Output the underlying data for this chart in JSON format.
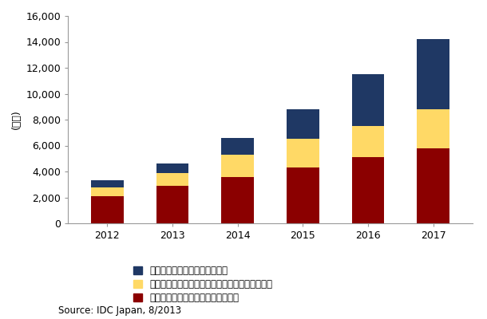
{
  "years": [
    "2012",
    "2013",
    "2014",
    "2015",
    "2016",
    "2017"
  ],
  "on_premise": [
    2100,
    2900,
    3600,
    4300,
    5100,
    5800
  ],
  "dedicated": [
    700,
    950,
    1700,
    2200,
    2400,
    3000
  ],
  "community": [
    500,
    750,
    1300,
    2300,
    4000,
    5400
  ],
  "colors": {
    "on_premise": "#8B0000",
    "dedicated": "#FFD966",
    "community": "#1F3864"
  },
  "ylabel": "(億円)",
  "ylim": [
    0,
    16000
  ],
  "yticks": [
    0,
    2000,
    4000,
    6000,
    8000,
    10000,
    12000,
    14000,
    16000
  ],
  "legend_labels": [
    "コミュニティクラウドサービス",
    "デディケイテッドプライベートクラウドサービス",
    "オンプレミスプライベートクラウド"
  ],
  "source_text": "Source: IDC Japan, 8/2013",
  "bar_width": 0.5,
  "background_color": "#FFFFFF",
  "plot_bg_color": "#FFFFFF"
}
